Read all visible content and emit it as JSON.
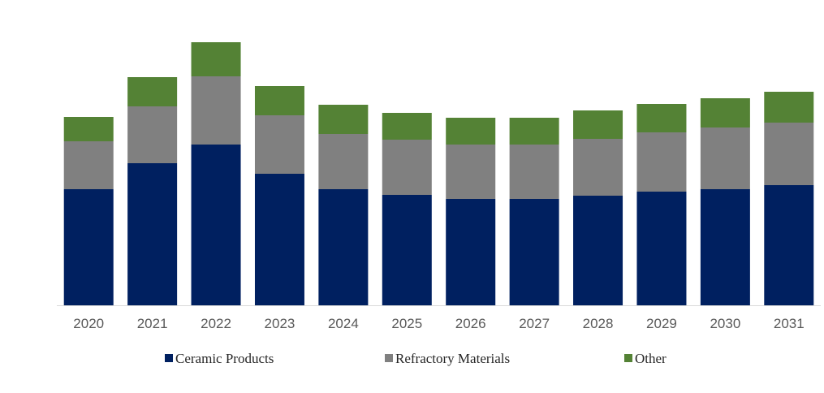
{
  "chart_data": {
    "type": "bar",
    "stacked": true,
    "title": "",
    "xlabel": "",
    "ylabel": "",
    "ylim": [
      0,
      330
    ],
    "grid": false,
    "legend_position": "bottom",
    "categories": [
      "2020",
      "2021",
      "2022",
      "2023",
      "2024",
      "2025",
      "2026",
      "2027",
      "2028",
      "2029",
      "2030",
      "2031"
    ],
    "series": [
      {
        "name": "Ceramic Products",
        "color": "#002060",
        "values": [
          143,
          175,
          198,
          162,
          143,
          136,
          131,
          131,
          135,
          140,
          143,
          148
        ]
      },
      {
        "name": "Refractory Materials",
        "color": "#808080",
        "values": [
          59,
          70,
          84,
          72,
          68,
          68,
          67,
          67,
          70,
          73,
          76,
          77
        ]
      },
      {
        "name": "Other",
        "color": "#548235",
        "values": [
          30,
          36,
          42,
          36,
          36,
          33,
          33,
          33,
          35,
          35,
          36,
          38
        ]
      }
    ]
  }
}
